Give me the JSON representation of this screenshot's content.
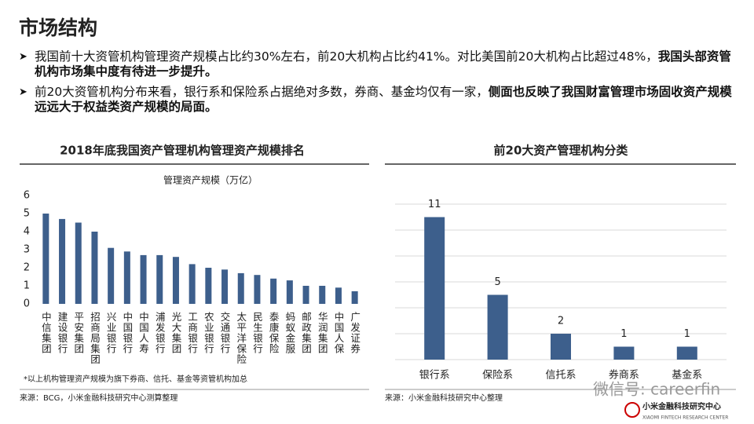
{
  "title": "市场结构",
  "bullets": [
    {
      "text": "我国前十大资管机构管理资产规模占比约30%左右，前20大机构占比约41%。对比美国前20大机构占比超过48%，",
      "bold_text": "我国头部资管机构市场集中度有待进一步提升。"
    },
    {
      "text": "前20大资管机构分布来看，银行系和保险系占据绝对多数，券商、基金均仅有一家，",
      "bold_text": "侧面也反映了我国财富管理市场固收资产规模远远大于权益类资产规模的局面。"
    }
  ],
  "chart_data": [
    {
      "type": "bar",
      "title": "2018年底我国资产管理机构管理资产规模排名",
      "y_label": "管理资产规模（万亿）",
      "categories": [
        "中信集团",
        "建设银行",
        "平安集团",
        "招商局集团",
        "兴业银行",
        "中国银行",
        "中国人寿",
        "浦发银行",
        "光大集团",
        "工商银行",
        "农业银行",
        "交通银行",
        "太平洋保险",
        "民生银行",
        "泰康保险",
        "蚂蚁金服",
        "邮政集团",
        "华润集团",
        "中国人保",
        "广发证券"
      ],
      "values": [
        5.0,
        4.7,
        4.5,
        4.0,
        3.1,
        2.9,
        2.7,
        2.7,
        2.6,
        2.2,
        2.0,
        1.9,
        1.7,
        1.6,
        1.4,
        1.3,
        1.0,
        1.0,
        0.9,
        0.7
      ],
      "color": "#3d5f8c",
      "ylim": [
        0,
        6
      ],
      "yticks": [
        0,
        1,
        2,
        3,
        4,
        5,
        6
      ],
      "ytick_labels": true,
      "grid": false,
      "footnote": "*以上机构管理资产规模为旗下券商、信托、基金等资管机构加总",
      "source": "来源：BCG，小米金融科技研究中心测算整理"
    },
    {
      "type": "bar",
      "title": "前20大资产管理机构分类",
      "categories": [
        "银行系",
        "保险系",
        "信托系",
        "券商系",
        "基金系"
      ],
      "values": [
        11,
        5,
        2,
        1,
        1
      ],
      "color": "#3d5f8c",
      "ylim": [
        0,
        12
      ],
      "yticks": [
        0,
        2,
        4,
        6,
        8,
        10,
        12
      ],
      "ytick_labels": false,
      "grid": true,
      "data_labels": true,
      "source": "来源：小米金融科技研究中心整理"
    }
  ],
  "watermark": "微信号: careerfin",
  "logo": {
    "name": "小米金融科技研究中心",
    "english": "XIAOMI FINTECH RESEARCH CENTER"
  }
}
